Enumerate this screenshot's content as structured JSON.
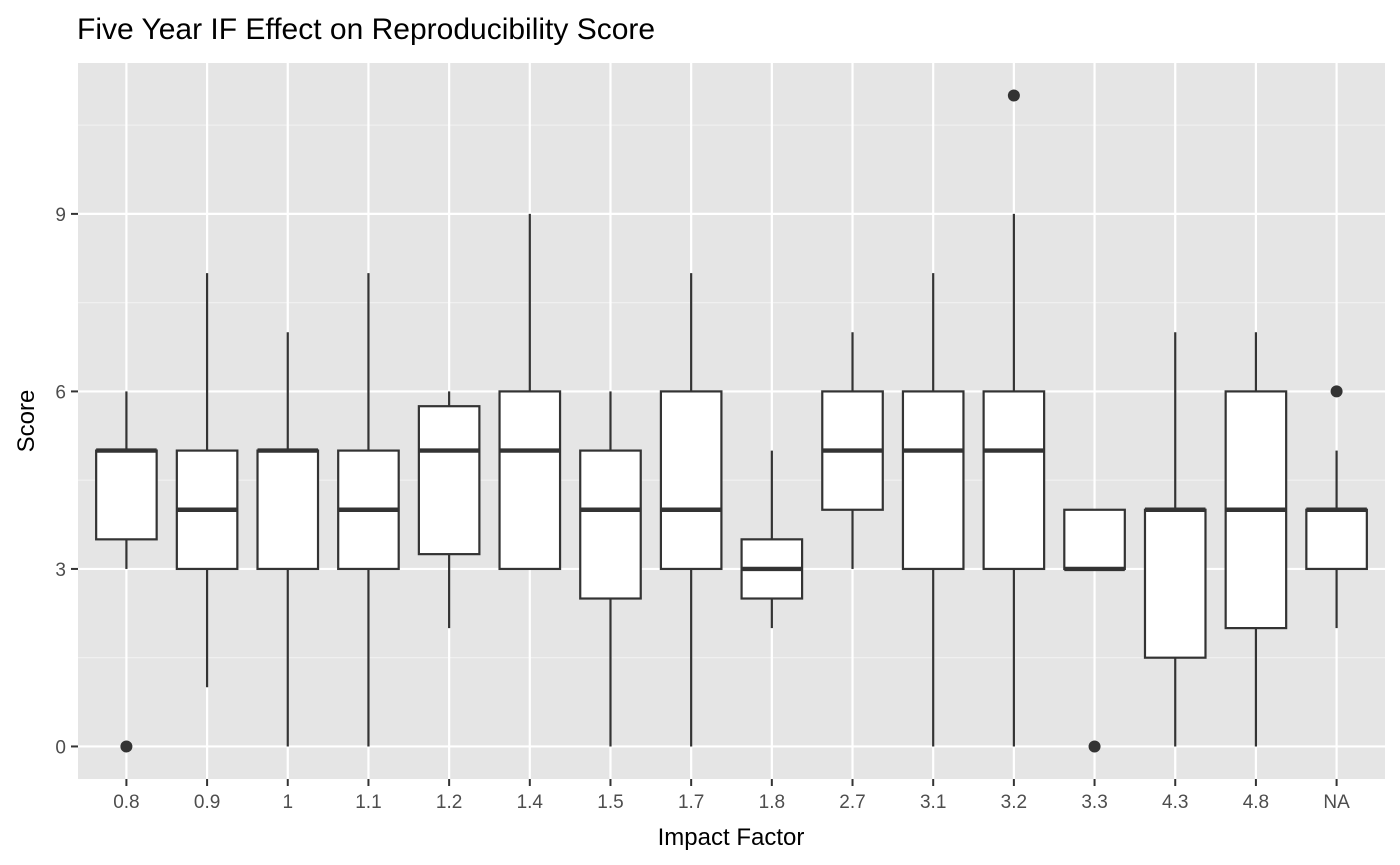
{
  "chart_data": {
    "type": "boxplot",
    "title": "Five Year IF Effect on Reproducibility Score",
    "xlabel": "Impact Factor",
    "ylabel": "Score",
    "categories": [
      "0.8",
      "0.9",
      "1",
      "1.1",
      "1.2",
      "1.4",
      "1.5",
      "1.7",
      "1.8",
      "2.7",
      "3.1",
      "3.2",
      "3.3",
      "4.3",
      "4.8",
      "NA"
    ],
    "y_ticks": [
      0,
      3,
      6,
      9
    ],
    "ylim": [
      -0.55,
      11.55
    ],
    "grid": true,
    "legend": "none",
    "boxes": [
      {
        "category": "0.8",
        "whisker_low": 3,
        "q1": 3.5,
        "median": 5,
        "q3": 5,
        "whisker_high": 6,
        "outliers": [
          0
        ]
      },
      {
        "category": "0.9",
        "whisker_low": 1,
        "q1": 3,
        "median": 4,
        "q3": 5,
        "whisker_high": 8,
        "outliers": []
      },
      {
        "category": "1",
        "whisker_low": 0,
        "q1": 3,
        "median": 5,
        "q3": 5,
        "whisker_high": 7,
        "outliers": []
      },
      {
        "category": "1.1",
        "whisker_low": 0,
        "q1": 3,
        "median": 4,
        "q3": 5,
        "whisker_high": 8,
        "outliers": []
      },
      {
        "category": "1.2",
        "whisker_low": 2,
        "q1": 3.25,
        "median": 5,
        "q3": 5.75,
        "whisker_high": 6,
        "outliers": []
      },
      {
        "category": "1.4",
        "whisker_low": 3,
        "q1": 3,
        "median": 5,
        "q3": 6,
        "whisker_high": 9,
        "outliers": []
      },
      {
        "category": "1.5",
        "whisker_low": 0,
        "q1": 2.5,
        "median": 4,
        "q3": 5,
        "whisker_high": 6,
        "outliers": []
      },
      {
        "category": "1.7",
        "whisker_low": 0,
        "q1": 3,
        "median": 4,
        "q3": 6,
        "whisker_high": 8,
        "outliers": []
      },
      {
        "category": "1.8",
        "whisker_low": 2,
        "q1": 2.5,
        "median": 3,
        "q3": 3.5,
        "whisker_high": 5,
        "outliers": []
      },
      {
        "category": "2.7",
        "whisker_low": 3,
        "q1": 4,
        "median": 5,
        "q3": 6,
        "whisker_high": 7,
        "outliers": []
      },
      {
        "category": "3.1",
        "whisker_low": 0,
        "q1": 3,
        "median": 5,
        "q3": 6,
        "whisker_high": 8,
        "outliers": []
      },
      {
        "category": "3.2",
        "whisker_low": 0,
        "q1": 3,
        "median": 5,
        "q3": 6,
        "whisker_high": 9,
        "outliers": [
          11
        ]
      },
      {
        "category": "3.3",
        "whisker_low": 3,
        "q1": 3,
        "median": 3,
        "q3": 4,
        "whisker_high": 4,
        "outliers": [
          0
        ]
      },
      {
        "category": "4.3",
        "whisker_low": 0,
        "q1": 1.5,
        "median": 4,
        "q3": 4,
        "whisker_high": 7,
        "outliers": []
      },
      {
        "category": "4.8",
        "whisker_low": 0,
        "q1": 2,
        "median": 4,
        "q3": 6,
        "whisker_high": 7,
        "outliers": []
      },
      {
        "category": "NA",
        "whisker_low": 2,
        "q1": 3,
        "median": 4,
        "q3": 4,
        "whisker_high": 5,
        "outliers": [
          6
        ]
      }
    ]
  },
  "colors": {
    "panel_background": "#e5e5e5",
    "grid_major": "#ffffff",
    "grid_minor": "#f2f2f2",
    "box_fill": "#ffffff",
    "box_stroke": "#333333",
    "outlier": "#333333",
    "tick_text": "#4d4d4d",
    "title_text": "#000000"
  }
}
